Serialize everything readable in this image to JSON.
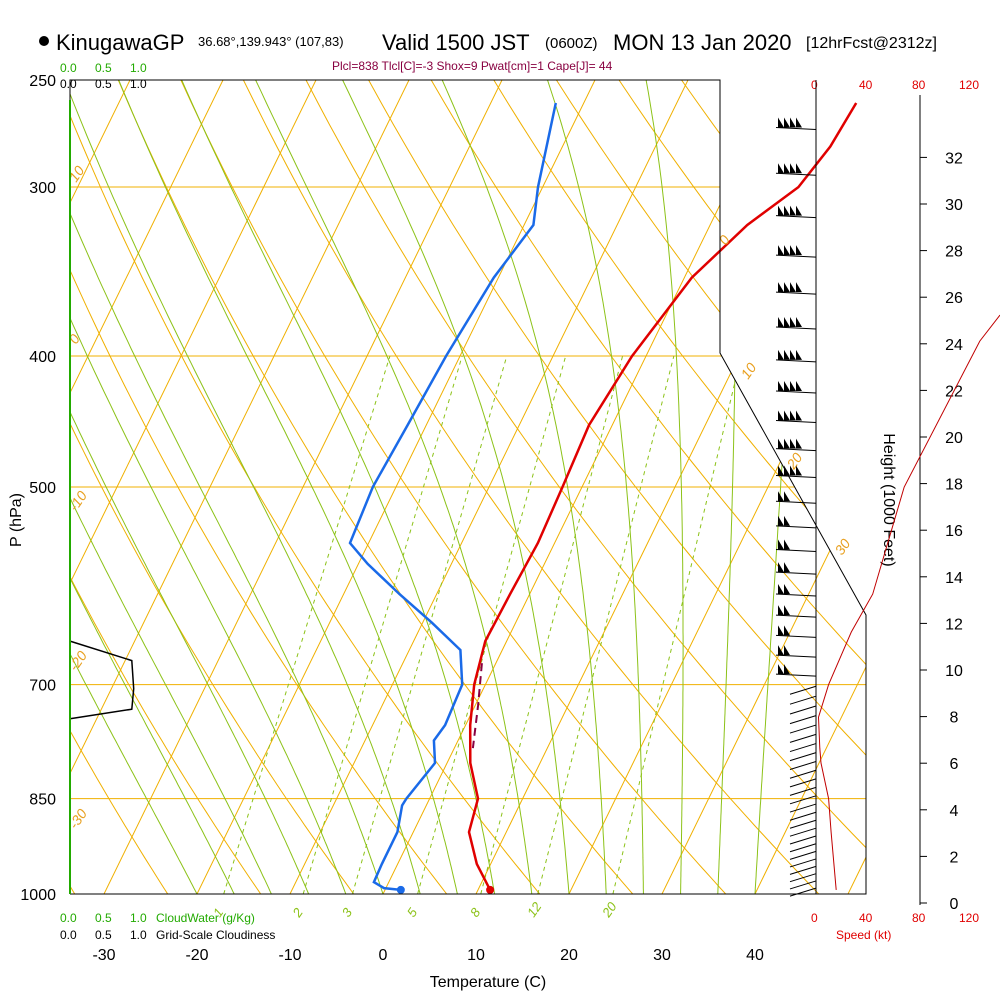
{
  "header": {
    "station": "KinugawaGP",
    "coords": "36.68°,139.943° (107,83)",
    "valid": "Valid 1500 JST",
    "utc": "(0600Z)",
    "date": "MON 13 Jan 2020",
    "forecast": "[12hrFcst@2312z]",
    "indices": "Plcl=838 Tlcl[C]=-3 Shox=9 Pwat[cm]=1 Cape[J]= 44"
  },
  "scales": {
    "cloudwater_ticks": [
      "0.0",
      "0.5",
      "1.0"
    ],
    "cloudwater_label": "CloudWater (g/Kg)",
    "cloudiness_ticks": [
      "0.0",
      "0.5",
      "1.0"
    ],
    "cloudiness_label": "Grid-Scale Cloudiness",
    "speed_ticks": [
      "0",
      "40",
      "80",
      "120"
    ],
    "speed_label": "Speed (kt)"
  },
  "chart_data": {
    "type": "line",
    "title": "KinugawaGP Valid 1500 JST (0600Z) MON 13 Jan 2020 [12hrFcst@2312z]",
    "xlabel": "Temperature (C)",
    "ylabel": "P (hPa)",
    "y2label": "Height (1000 Feet)",
    "xlim": [
      -35,
      35
    ],
    "ylim": [
      1000,
      250
    ],
    "yscale": "log",
    "xticks": [
      "-30",
      "-20",
      "-10",
      "0",
      "10",
      "20",
      "30",
      "40"
    ],
    "xtick_values": [
      -30,
      -20,
      -10,
      0,
      10,
      20,
      30,
      40
    ],
    "yticks": [
      "250",
      "300",
      "400",
      "500",
      "700",
      "850",
      "1000"
    ],
    "ytick_values": [
      250,
      300,
      400,
      500,
      700,
      850,
      1000
    ],
    "height_ticks": [
      "0",
      "2",
      "4",
      "6",
      "8",
      "10",
      "12",
      "14",
      "16",
      "18",
      "20",
      "22",
      "24",
      "26",
      "28",
      "30",
      "32"
    ],
    "series": [
      {
        "color": "#e00000",
        "points": [
          [
            11.3,
            993
          ],
          [
            8.5,
            950
          ],
          [
            6.0,
            900
          ],
          [
            5.2,
            850
          ],
          [
            2.5,
            800
          ],
          [
            0.5,
            750
          ],
          [
            -1.2,
            700
          ],
          [
            -2.3,
            650
          ],
          [
            -2.1,
            600
          ],
          [
            -1.8,
            550
          ],
          [
            -2.1,
            500
          ],
          [
            -2.5,
            450
          ],
          [
            -1.5,
            400
          ],
          [
            0.8,
            350
          ],
          [
            4.0,
            320
          ],
          [
            7.5,
            300
          ],
          [
            8.8,
            280
          ],
          [
            9.3,
            260
          ]
        ]
      },
      {
        "color": "#1a6ae8",
        "points": [
          [
            1.7,
            993
          ],
          [
            -0.2,
            990
          ],
          [
            -1.6,
            980
          ],
          [
            -1.7,
            950
          ],
          [
            -1.7,
            900
          ],
          [
            -2.6,
            860
          ],
          [
            -2.5,
            850
          ],
          [
            -1.3,
            800
          ],
          [
            -2.6,
            770
          ],
          [
            -2.2,
            750
          ],
          [
            -2.5,
            700
          ],
          [
            -4.5,
            660
          ],
          [
            -9,
            630
          ],
          [
            -14,
            600
          ],
          [
            -19,
            570
          ],
          [
            -22,
            550
          ],
          [
            -22.5,
            500
          ],
          [
            -22,
            450
          ],
          [
            -21.5,
            400
          ],
          [
            -20.5,
            350
          ],
          [
            -19,
            320
          ],
          [
            -20.5,
            300
          ],
          [
            -23,
            260
          ]
        ]
      },
      {
        "color": "#880040",
        "points": [
          [
            -1.5,
            675
          ],
          [
            0.3,
            725
          ],
          [
            2.0,
            780
          ]
        ]
      }
    ],
    "surface_points": [
      {
        "value": 11.3,
        "pressure": 993,
        "color": "#e00000"
      },
      {
        "value": 1.7,
        "pressure": 993,
        "color": "#1a6ae8"
      }
    ],
    "isotherm_labels": [
      "10",
      "0",
      "-10",
      "-20",
      "-30",
      "0",
      "10",
      "20",
      "30"
    ],
    "mixing_ratio_labels": [
      "1",
      "2",
      "3",
      "5",
      "8",
      "12",
      "20"
    ],
    "cloudiness_profile": [
      [
        0.0,
        650
      ],
      [
        0.95,
        672
      ],
      [
        0.98,
        705
      ],
      [
        0.95,
        730
      ],
      [
        0.0,
        742
      ]
    ],
    "wind_speed_profile": [
      [
        16,
        993
      ],
      [
        12,
        900
      ],
      [
        10,
        850
      ],
      [
        4,
        800
      ],
      [
        3,
        780
      ],
      [
        2,
        740
      ],
      [
        10,
        700
      ],
      [
        28,
        640
      ],
      [
        45,
        600
      ],
      [
        70,
        500
      ],
      [
        130,
        390
      ]
    ]
  }
}
